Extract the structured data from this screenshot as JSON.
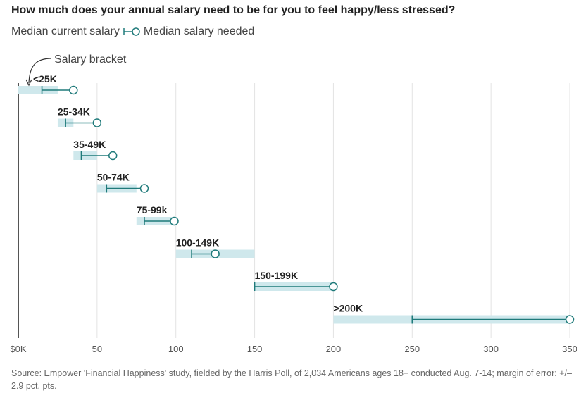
{
  "chart_data": {
    "type": "dot-range",
    "title": "How much does your annual salary need to be for you to feel happy/less stressed?",
    "legend": {
      "current_label": "Median current salary",
      "needed_label": "Median salary needed"
    },
    "annotation": "Salary bracket",
    "x_ticks": [
      {
        "value": 0,
        "label": "$0K"
      },
      {
        "value": 50,
        "label": "50"
      },
      {
        "value": 100,
        "label": "100"
      },
      {
        "value": 150,
        "label": "150"
      },
      {
        "value": 200,
        "label": "200"
      },
      {
        "value": 250,
        "label": "250"
      },
      {
        "value": 300,
        "label": "300"
      },
      {
        "value": 350,
        "label": "350"
      }
    ],
    "xlim": [
      0,
      350
    ],
    "grid": true,
    "categories": [
      "<25K",
      "25-34K",
      "35-49K",
      "50-74K",
      "75-99k",
      "100-149K",
      "150-199K",
      ">200K"
    ],
    "brackets": [
      {
        "label": "<25K",
        "range": [
          0,
          25
        ],
        "current": 15,
        "needed": 35
      },
      {
        "label": "25-34K",
        "range": [
          25,
          35
        ],
        "current": 30,
        "needed": 50
      },
      {
        "label": "35-49K",
        "range": [
          35,
          50
        ],
        "current": 40,
        "needed": 60
      },
      {
        "label": "50-74K",
        "range": [
          50,
          75
        ],
        "current": 56,
        "needed": 80
      },
      {
        "label": "75-99k",
        "range": [
          75,
          100
        ],
        "current": 80,
        "needed": 99
      },
      {
        "label": "100-149K",
        "range": [
          100,
          150
        ],
        "current": 110,
        "needed": 125
      },
      {
        "label": "150-199K",
        "range": [
          150,
          200
        ],
        "current": 150,
        "needed": 200
      },
      {
        "label": ">200K",
        "range": [
          200,
          350
        ],
        "current": 250,
        "needed": 350
      }
    ],
    "colors": {
      "range_band": "#cfe8ec",
      "line": "#1f7a7a",
      "grid": "#e3e3e3",
      "axis": "#555555"
    }
  },
  "source": "Source: Empower 'Financial Happiness' study, fielded by the Harris Poll, of 2,034 Americans ages 18+ conducted Aug. 7-14; margin of error: +/– 2.9 pct. pts."
}
